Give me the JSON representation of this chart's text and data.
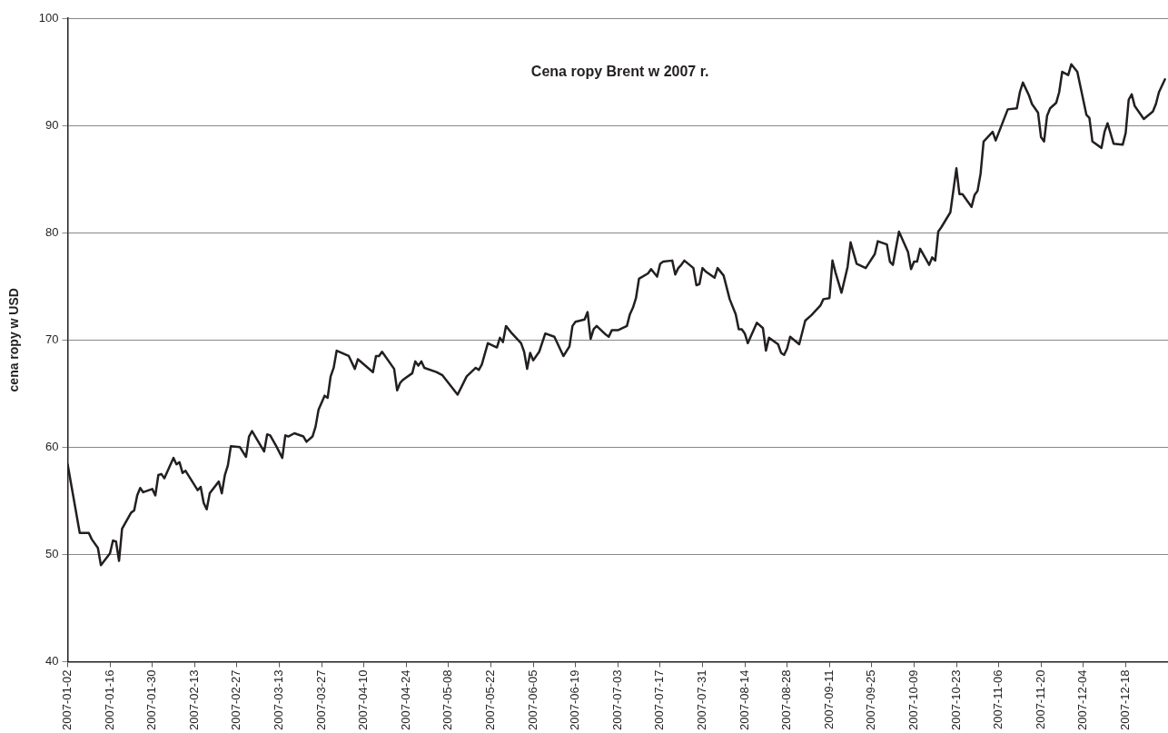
{
  "chart_data": {
    "type": "line",
    "title": "Cena ropy Brent w 2007 r.",
    "ylabel": "cena ropy w USD",
    "xlim": [
      "2007-01-02",
      "2008-01-01"
    ],
    "ylim": [
      40,
      100
    ],
    "yticks": [
      40,
      50,
      60,
      70,
      80,
      90,
      100
    ],
    "xticks": [
      "2007-01-02",
      "2007-01-16",
      "2007-01-30",
      "2007-02-13",
      "2007-02-27",
      "2007-03-13",
      "2007-03-27",
      "2007-04-10",
      "2007-04-24",
      "2007-05-08",
      "2007-05-22",
      "2007-06-05",
      "2007-06-19",
      "2007-07-03",
      "2007-07-17",
      "2007-07-31",
      "2007-08-14",
      "2007-08-28",
      "2007-09-11",
      "2007-09-25",
      "2007-10-09",
      "2007-10-23",
      "2007-11-06",
      "2007-11-20",
      "2007-12-04",
      "2007-12-18"
    ],
    "grid": "y",
    "legend": false,
    "marker": "none",
    "line_style": "solid",
    "series": [
      {
        "color": "#231f20",
        "x": [
          "2007-01-02",
          "2007-01-06",
          "2007-01-09",
          "2007-01-10",
          "2007-01-12",
          "2007-01-13",
          "2007-01-16",
          "2007-01-17",
          "2007-01-18",
          "2007-01-19",
          "2007-01-20",
          "2007-01-23",
          "2007-01-24",
          "2007-01-25",
          "2007-01-26",
          "2007-01-27",
          "2007-01-30",
          "2007-01-31",
          "2007-02-01",
          "2007-02-02",
          "2007-02-03",
          "2007-02-06",
          "2007-02-07",
          "2007-02-08",
          "2007-02-09",
          "2007-02-10",
          "2007-02-14",
          "2007-02-15",
          "2007-02-16",
          "2007-02-17",
          "2007-02-18",
          "2007-02-21",
          "2007-02-22",
          "2007-02-23",
          "2007-02-24",
          "2007-02-25",
          "2007-02-28",
          "2007-03-02",
          "2007-03-03",
          "2007-03-04",
          "2007-03-08",
          "2007-03-09",
          "2007-03-10",
          "2007-03-12",
          "2007-03-14",
          "2007-03-15",
          "2007-03-16",
          "2007-03-18",
          "2007-03-21",
          "2007-03-22",
          "2007-03-24",
          "2007-03-25",
          "2007-03-26",
          "2007-03-28",
          "2007-03-29",
          "2007-03-30",
          "2007-03-31",
          "2007-04-01",
          "2007-04-05",
          "2007-04-07",
          "2007-04-08",
          "2007-04-13",
          "2007-04-14",
          "2007-04-15",
          "2007-04-16",
          "2007-04-20",
          "2007-04-21",
          "2007-04-22",
          "2007-04-23",
          "2007-04-26",
          "2007-04-27",
          "2007-04-28",
          "2007-04-29",
          "2007-04-30",
          "2007-05-04",
          "2007-05-06",
          "2007-05-11",
          "2007-05-14",
          "2007-05-17",
          "2007-05-18",
          "2007-05-19",
          "2007-05-21",
          "2007-05-24",
          "2007-05-25",
          "2007-05-26",
          "2007-05-27",
          "2007-05-29",
          "2007-06-01",
          "2007-06-02",
          "2007-06-03",
          "2007-06-04",
          "2007-06-05",
          "2007-06-07",
          "2007-06-09",
          "2007-06-12",
          "2007-06-15",
          "2007-06-17",
          "2007-06-18",
          "2007-06-19",
          "2007-06-22",
          "2007-06-23",
          "2007-06-24",
          "2007-06-25",
          "2007-06-26",
          "2007-06-29",
          "2007-06-30",
          "2007-07-01",
          "2007-07-03",
          "2007-07-06",
          "2007-07-07",
          "2007-07-08",
          "2007-07-09",
          "2007-07-10",
          "2007-07-13",
          "2007-07-14",
          "2007-07-16",
          "2007-07-17",
          "2007-07-18",
          "2007-07-21",
          "2007-07-22",
          "2007-07-23",
          "2007-07-24",
          "2007-07-25",
          "2007-07-28",
          "2007-07-29",
          "2007-07-30",
          "2007-07-31",
          "2007-08-01",
          "2007-08-04",
          "2007-08-05",
          "2007-08-07",
          "2007-08-09",
          "2007-08-11",
          "2007-08-12",
          "2007-08-13",
          "2007-08-14",
          "2007-08-15",
          "2007-08-18",
          "2007-08-20",
          "2007-08-21",
          "2007-08-22",
          "2007-08-25",
          "2007-08-26",
          "2007-08-27",
          "2007-08-28",
          "2007-08-29",
          "2007-09-01",
          "2007-09-03",
          "2007-09-05",
          "2007-09-08",
          "2007-09-09",
          "2007-09-11",
          "2007-09-12",
          "2007-09-13",
          "2007-09-15",
          "2007-09-17",
          "2007-09-18",
          "2007-09-20",
          "2007-09-23",
          "2007-09-26",
          "2007-09-27",
          "2007-09-30",
          "2007-10-01",
          "2007-10-02",
          "2007-10-04",
          "2007-10-07",
          "2007-10-08",
          "2007-10-09",
          "2007-10-10",
          "2007-10-11",
          "2007-10-14",
          "2007-10-15",
          "2007-10-16",
          "2007-10-17",
          "2007-10-18",
          "2007-10-21",
          "2007-10-23",
          "2007-10-24",
          "2007-10-25",
          "2007-10-28",
          "2007-10-29",
          "2007-10-30",
          "2007-10-31",
          "2007-11-01",
          "2007-11-04",
          "2007-11-05",
          "2007-11-09",
          "2007-11-12",
          "2007-11-13",
          "2007-11-14",
          "2007-11-16",
          "2007-11-17",
          "2007-11-19",
          "2007-11-20",
          "2007-11-21",
          "2007-11-22",
          "2007-11-23",
          "2007-11-25",
          "2007-11-26",
          "2007-11-27",
          "2007-11-29",
          "2007-11-30",
          "2007-12-02",
          "2007-12-05",
          "2007-12-06",
          "2007-12-07",
          "2007-12-10",
          "2007-12-11",
          "2007-12-12",
          "2007-12-14",
          "2007-12-17",
          "2007-12-18",
          "2007-12-19",
          "2007-12-20",
          "2007-12-21",
          "2007-12-24",
          "2007-12-27",
          "2007-12-28",
          "2007-12-29",
          "2007-12-31"
        ],
        "values": [
          58.4,
          52.0,
          52.0,
          51.4,
          50.6,
          49.0,
          50.1,
          51.3,
          51.2,
          49.4,
          52.4,
          53.9,
          54.1,
          55.5,
          56.2,
          55.8,
          56.1,
          55.5,
          57.4,
          57.5,
          57.1,
          59.0,
          58.4,
          58.6,
          57.6,
          57.8,
          56.0,
          56.3,
          54.8,
          54.2,
          55.7,
          56.8,
          55.7,
          57.4,
          58.3,
          60.1,
          60.0,
          59.1,
          61.0,
          61.5,
          59.6,
          61.2,
          61.1,
          60.1,
          59.0,
          61.1,
          61.0,
          61.3,
          61.0,
          60.5,
          61.0,
          61.9,
          63.5,
          64.8,
          64.6,
          66.6,
          67.4,
          69.0,
          68.5,
          67.3,
          68.2,
          67.0,
          68.5,
          68.5,
          68.9,
          67.3,
          65.3,
          66.0,
          66.3,
          66.9,
          68.0,
          67.6,
          68.0,
          67.4,
          67.0,
          66.7,
          64.9,
          66.6,
          67.4,
          67.2,
          67.7,
          69.7,
          69.3,
          70.2,
          69.8,
          71.3,
          70.6,
          69.7,
          68.9,
          67.3,
          68.8,
          68.1,
          68.9,
          70.6,
          70.3,
          68.5,
          69.4,
          71.3,
          71.7,
          71.9,
          72.6,
          70.1,
          71.0,
          71.3,
          70.5,
          70.3,
          70.9,
          70.9,
          71.3,
          72.4,
          73.0,
          73.9,
          75.7,
          76.2,
          76.6,
          75.9,
          77.1,
          77.3,
          77.4,
          76.1,
          76.7,
          77.0,
          77.4,
          76.7,
          75.1,
          75.2,
          76.7,
          76.4,
          75.8,
          76.7,
          76.0,
          73.8,
          72.4,
          71.0,
          71.0,
          70.6,
          69.7,
          71.6,
          71.1,
          69.0,
          70.2,
          69.6,
          68.8,
          68.6,
          69.2,
          70.3,
          69.6,
          71.8,
          72.3,
          73.2,
          73.8,
          73.9,
          77.4,
          76.3,
          74.4,
          76.8,
          79.1,
          77.1,
          76.7,
          78.0,
          79.2,
          78.9,
          77.3,
          77.0,
          80.1,
          78.2,
          76.6,
          77.3,
          77.3,
          78.5,
          77.0,
          77.7,
          77.4,
          80.1,
          80.5,
          81.9,
          86.0,
          83.6,
          83.6,
          82.4,
          83.5,
          83.9,
          85.5,
          88.5,
          89.4,
          88.6,
          91.5,
          91.6,
          93.1,
          94.0,
          92.8,
          92.0,
          91.2,
          88.9,
          88.5,
          90.9,
          91.6,
          92.1,
          93.1,
          95.0,
          94.7,
          95.7,
          95.0,
          91.0,
          90.7,
          88.5,
          87.9,
          89.4,
          90.2,
          88.3,
          88.2,
          89.3,
          92.4,
          92.9,
          91.8,
          90.6,
          91.3,
          92.0,
          93.1,
          94.3
        ]
      }
    ]
  }
}
